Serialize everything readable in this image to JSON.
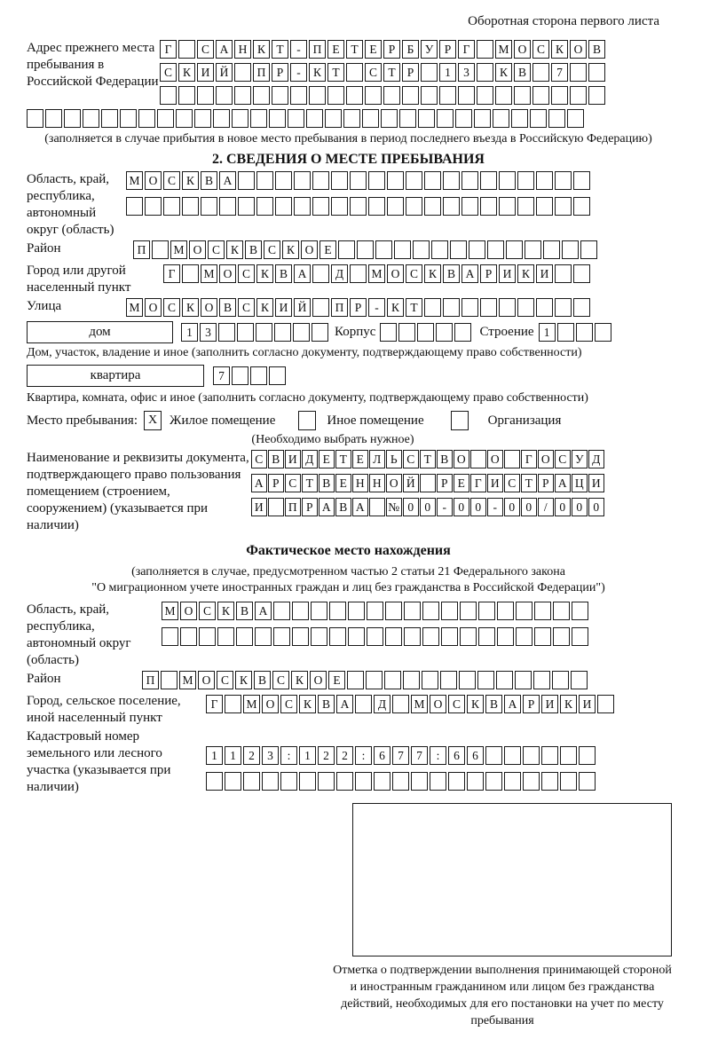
{
  "header": {
    "title": "Оборотная сторона первого листа"
  },
  "prev_address": {
    "label": "Адрес прежнего места пребывания в Российской Федерации",
    "rows": [
      {
        "cells": "Г САНКТ-ПЕТЕРБУРГ МОСКОВ",
        "count": 24
      },
      {
        "cells": "СКИЙ ПР-КТ СТР 13 КВ 7",
        "count": 24
      },
      {
        "cells": "",
        "count": 24
      },
      {
        "cells": "",
        "count": 30
      }
    ],
    "note": "(заполняется в случае прибытия в новое место пребывания в период последнего въезда в Российскую Федерацию)"
  },
  "section2": {
    "title": "2. СВЕДЕНИЯ О МЕСТЕ ПРЕБЫВАНИЯ",
    "region": {
      "label": "Область, край, республика, автономный округ (область)",
      "rows": [
        {
          "cells": "МОСКВА",
          "count": 25
        },
        {
          "cells": "",
          "count": 25
        }
      ]
    },
    "district": {
      "label": "Район",
      "row": {
        "cells": "П МОСКВСКОЕ",
        "count": 25
      }
    },
    "city": {
      "label": "Город или другой населенный пункт",
      "row": {
        "cells": "Г МОСКВА Д МОСКВАРИКИ",
        "count": 23
      }
    },
    "street": {
      "label": "Улица",
      "row": {
        "cells": "МОСКОВСКИЙ ПР-КТ",
        "count": 25
      }
    },
    "house": {
      "box_label": "дом",
      "row": {
        "cells": "13",
        "count": 8
      },
      "korpus_label": "Корпус",
      "korpus_row": {
        "cells": "",
        "count": 5
      },
      "stroenie_label": "Строение",
      "stroenie_row": {
        "cells": "1",
        "count": 4
      }
    },
    "house_note": "Дом, участок, владение и иное (заполнить согласно документу, подтверждающему право собственности)",
    "apartment": {
      "box_label": "квартира",
      "row": {
        "cells": "7",
        "count": 4
      }
    },
    "apartment_note": "Квартира, комната, офис и иное (заполнить согласно документу, подтверждающему право собственности)",
    "stay_type": {
      "label": "Место пребывания:",
      "options": [
        {
          "mark": "X",
          "label": "Жилое помещение"
        },
        {
          "mark": "",
          "label": "Иное помещение"
        },
        {
          "mark": "",
          "label": "Организация"
        }
      ],
      "note": "(Необходимо выбрать нужное)"
    },
    "document": {
      "label": "Наименование и реквизиты документа, подтверждающего право пользования помещением (строением, сооружением) (указывается при наличии)",
      "rows": [
        {
          "cells": "СВИДЕТЕЛЬСТВО О ГОСУД",
          "count": 21
        },
        {
          "cells": "АРСТВЕННОЙ РЕГИСТРАЦИ",
          "count": 21
        },
        {
          "cells": "И ПРАВА №00-00-00/000",
          "count": 21
        }
      ]
    }
  },
  "actual_location": {
    "title": "Фактическое место нахождения",
    "note_line1": "(заполняется в случае, предусмотренном частью 2 статьи 21 Федерального закона",
    "note_line2": "\"О миграционном учете иностранных граждан и лиц без гражданства в Российской Федерации\")",
    "region": {
      "label": "Область, край, республика, автономный округ (область)",
      "rows": [
        {
          "cells": "МОСКВА",
          "count": 23
        },
        {
          "cells": "",
          "count": 23
        }
      ]
    },
    "district": {
      "label": "Район",
      "row": {
        "cells": "П МОСКВСКОЕ",
        "count": 24
      }
    },
    "city": {
      "label": "Город, сельское поселение, иной населенный пункт",
      "row": {
        "cells": "Г МОСКВА Д МОСКВАРИКИ",
        "count": 22
      }
    },
    "cadastre": {
      "label": "Кадастровый номер земельного или лесного участка (указывается при наличии)",
      "rows": [
        {
          "cells": "1123:122:677:66",
          "count": 21
        },
        {
          "cells": "",
          "count": 21
        }
      ]
    },
    "stamp_note": "Отметка о подтверждении выполнения принимающей стороной и иностранным гражданином или лицом без гражданства действий, необходимых для его постановки на учет по месту пребывания"
  }
}
